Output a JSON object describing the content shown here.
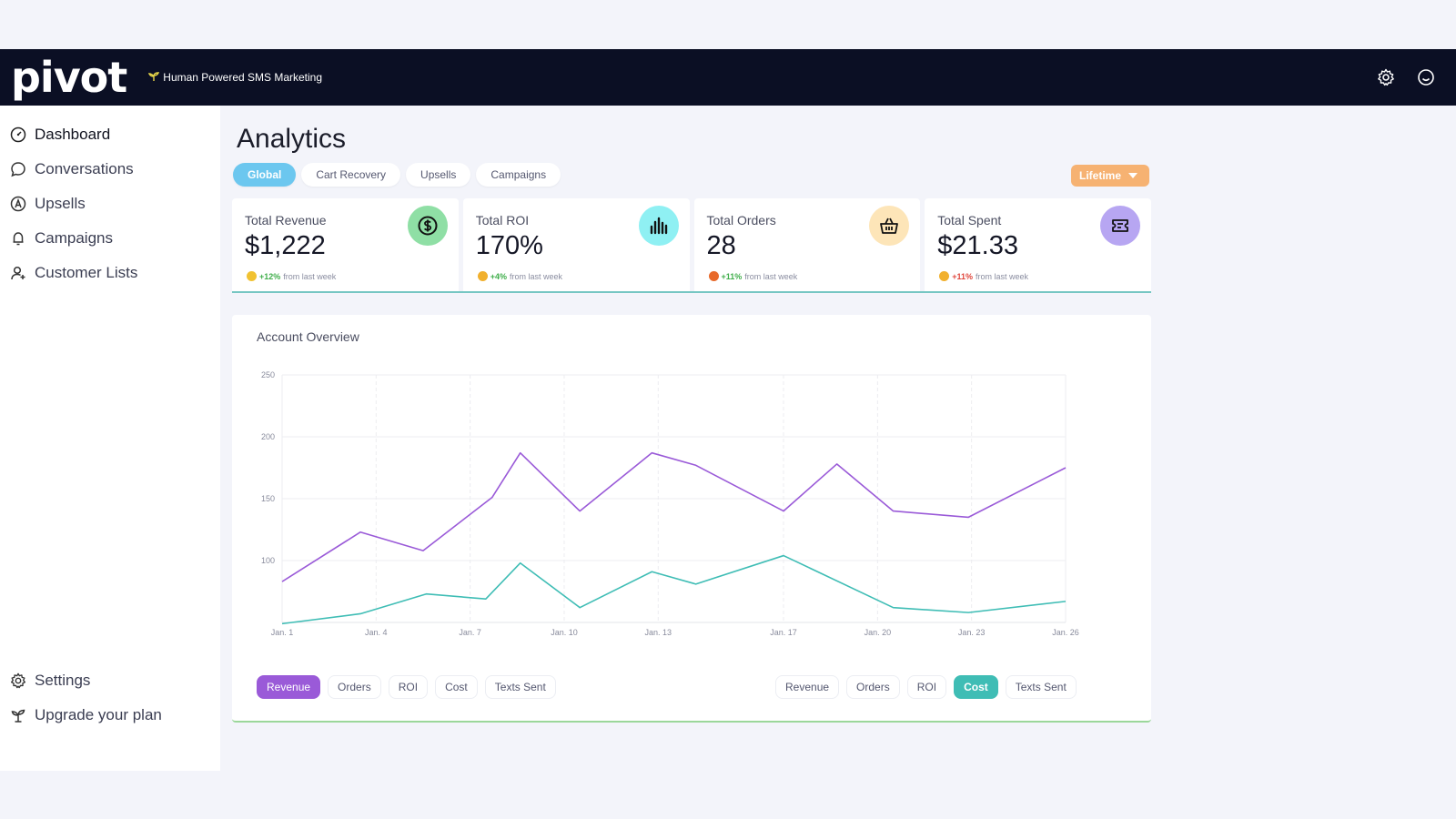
{
  "brand": {
    "logo_text": "pivot",
    "tagline": "Human Powered SMS Marketing"
  },
  "navbar": {
    "icons": [
      "gear-icon",
      "smiley-icon"
    ]
  },
  "sidebar": {
    "items": [
      {
        "label": "Dashboard",
        "icon": "dashboard-gauge-icon",
        "active": true
      },
      {
        "label": "Conversations",
        "icon": "chat-bubble-icon"
      },
      {
        "label": "Upsells",
        "icon": "upsell-icon"
      },
      {
        "label": "Campaigns",
        "icon": "bell-icon"
      },
      {
        "label": "Customer Lists",
        "icon": "user-add-icon"
      }
    ],
    "bottom_items": [
      {
        "label": "Settings",
        "icon": "gear-icon"
      },
      {
        "label": "Upgrade your plan",
        "icon": "sprout-icon"
      }
    ]
  },
  "page": {
    "title": "Analytics",
    "tabs": [
      "Global",
      "Cart Recovery",
      "Upsells",
      "Campaigns"
    ],
    "active_tab": "Global",
    "period_select": "Lifetime"
  },
  "stats": [
    {
      "label": "Total Revenue",
      "value": "$1,222",
      "change": "+12%",
      "suffix": "from last week",
      "change_color": "#3fae4a",
      "icon": "dollar-coin-icon",
      "icon_bg": "#8fdfa5",
      "emoji_color": "#f1c232"
    },
    {
      "label": "Total ROI",
      "value": "170%",
      "change": "+4%",
      "suffix": "from last week",
      "change_color": "#3fae4a",
      "icon": "bar-chart-icon",
      "icon_bg": "#8ff0f3",
      "emoji_color": "#f1b02e"
    },
    {
      "label": "Total Orders",
      "value": "28",
      "change": "+11%",
      "suffix": "from last week",
      "change_color": "#3fae4a",
      "icon": "basket-icon",
      "icon_bg": "#fde5b8",
      "emoji_color": "#e86a2b"
    },
    {
      "label": "Total Spent",
      "value": "$21.33",
      "change": "+11%",
      "suffix": "from last week",
      "change_color": "#e0463c",
      "icon": "ticket-icon",
      "icon_bg": "#b7a6f2",
      "emoji_color": "#f1b02e"
    }
  ],
  "overview": {
    "title": "Account Overview",
    "left_toggles": [
      "Revenue",
      "Orders",
      "ROI",
      "Cost",
      "Texts Sent"
    ],
    "left_active": "Revenue",
    "right_toggles": [
      "Revenue",
      "Orders",
      "ROI",
      "Cost",
      "Texts Sent"
    ],
    "right_active": "Cost"
  },
  "chart_data": {
    "type": "line",
    "x": [
      "Jan. 1",
      "Jan. 4",
      "Jan. 7",
      "Jan. 10",
      "Jan. 13",
      "Jan. 17",
      "Jan. 20",
      "Jan. 23",
      "Jan. 26"
    ],
    "x_ticks": [
      0,
      3,
      6,
      9,
      12,
      16,
      19,
      22,
      25
    ],
    "y_ticks": [
      100,
      150,
      200,
      250
    ],
    "ylim": [
      50,
      250
    ],
    "xlim": [
      0,
      25
    ],
    "grid": true,
    "series": [
      {
        "name": "Revenue",
        "color": "#9a5ad8",
        "x": [
          0,
          2.5,
          4.5,
          6.7,
          7.6,
          9.5,
          11.8,
          13.2,
          16,
          17.7,
          19.5,
          21.9,
          25
        ],
        "y": [
          83,
          123,
          108,
          151,
          187,
          140,
          187,
          177,
          140,
          178,
          140,
          135,
          175
        ]
      },
      {
        "name": "Cost",
        "color": "#3fbdb5",
        "x": [
          0,
          2.5,
          4.6,
          6.5,
          7.6,
          9.5,
          11.8,
          13.2,
          16,
          19.5,
          21.9,
          25
        ],
        "y": [
          49,
          57,
          73,
          69,
          98,
          62,
          91,
          81,
          104,
          62,
          58,
          67
        ]
      }
    ]
  }
}
